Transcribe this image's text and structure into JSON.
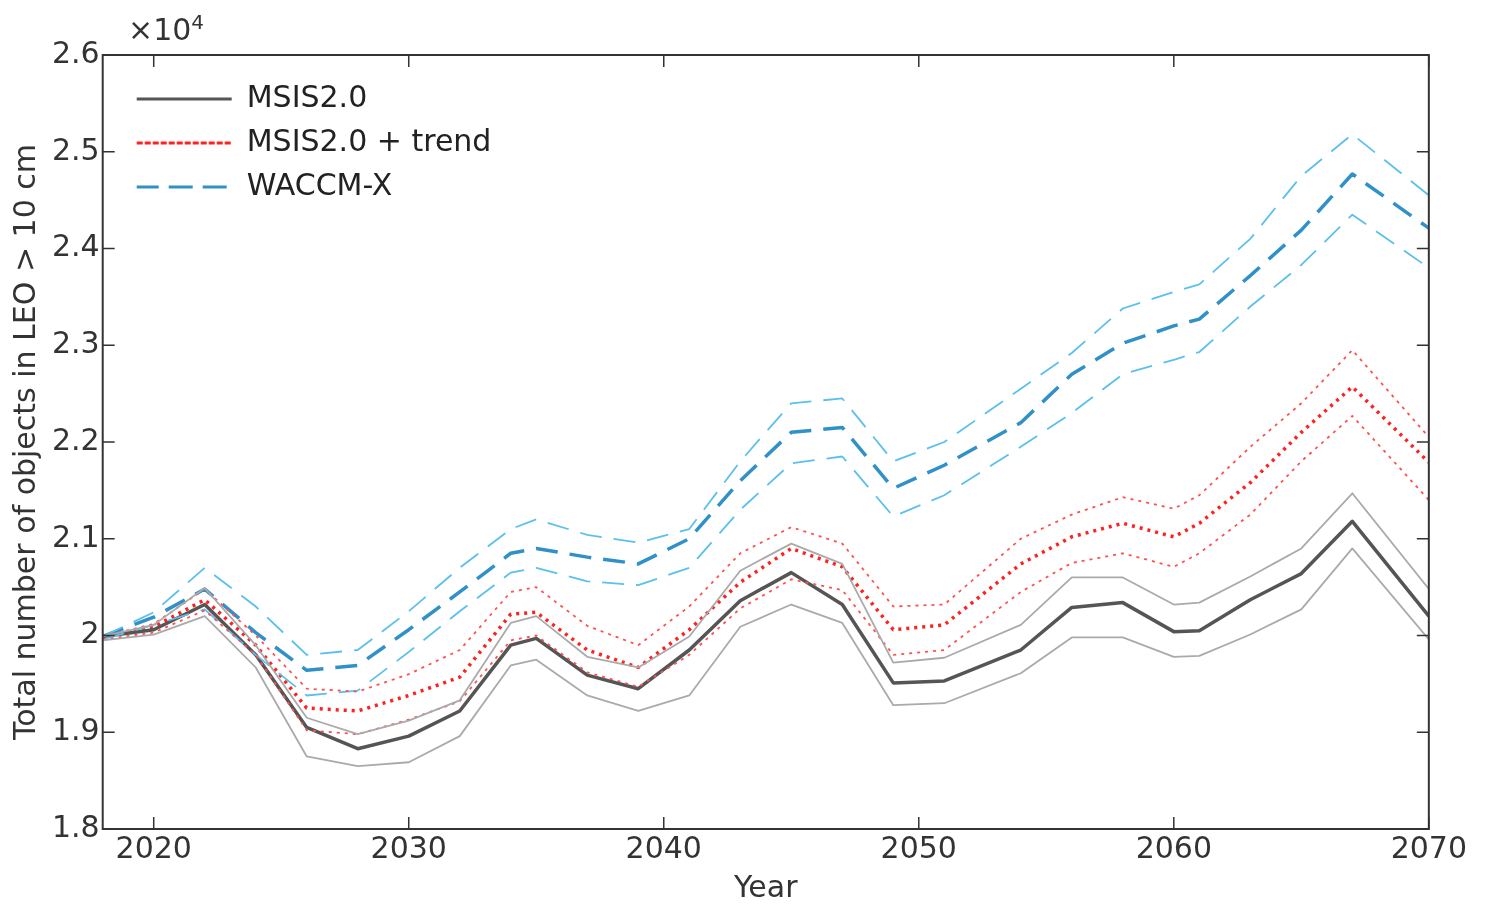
{
  "chart_data": {
    "type": "line",
    "xlabel": "Year",
    "ylabel": "Total number of objects in LEO > 10 cm",
    "annotations": [
      "×10$^{4}$"
    ],
    "x": [
      2018,
      2020,
      2022,
      2024,
      2026,
      2028,
      2030,
      2032,
      2034,
      2035,
      2037,
      2039,
      2041,
      2043,
      2045,
      2047,
      2049,
      2051,
      2054,
      2056,
      2058,
      2060,
      2061,
      2063,
      2065,
      2067,
      2070
    ],
    "series": [
      {
        "color": "#aaaaaa",
        "line_style": "solid",
        "values": [
          1.999,
          2.011,
          2.049,
          1.99,
          1.915,
          1.898,
          1.912,
          1.933,
          2.013,
          2.02,
          1.978,
          1.967,
          1.999,
          2.067,
          2.095,
          2.074,
          1.972,
          1.977,
          2.011,
          2.06,
          2.06,
          2.032,
          2.034,
          2.061,
          2.09,
          2.147,
          2.048
        ]
      },
      {
        "color": "#aaaaaa",
        "line_style": "solid",
        "values": [
          1.995,
          2.001,
          2.02,
          1.967,
          1.875,
          1.865,
          1.869,
          1.896,
          1.969,
          1.975,
          1.938,
          1.922,
          1.938,
          2.009,
          2.032,
          2.013,
          1.928,
          1.93,
          1.961,
          1.998,
          1.998,
          1.978,
          1.979,
          2.001,
          2.027,
          2.09,
          1.996
        ]
      },
      {
        "color": "#ff5050",
        "line_style": "dotted",
        "values": [
          1.999,
          2.012,
          2.048,
          2.0,
          1.945,
          1.942,
          1.96,
          1.985,
          2.045,
          2.05,
          2.01,
          1.99,
          2.03,
          2.085,
          2.112,
          2.095,
          2.03,
          2.032,
          2.1,
          2.125,
          2.143,
          2.131,
          2.145,
          2.195,
          2.24,
          2.295,
          2.205
        ]
      },
      {
        "color": "#ff5050",
        "line_style": "dotted",
        "values": [
          1.996,
          2.003,
          2.026,
          1.98,
          1.902,
          1.898,
          1.913,
          1.932,
          1.995,
          2.0,
          1.962,
          1.947,
          1.98,
          2.028,
          2.058,
          2.047,
          1.98,
          1.985,
          2.045,
          2.075,
          2.085,
          2.071,
          2.085,
          2.125,
          2.18,
          2.227,
          2.14
        ]
      },
      {
        "color": "#5bc0eb",
        "line_style": "dashed",
        "values": [
          1.999,
          2.024,
          2.07,
          2.03,
          1.98,
          1.985,
          2.025,
          2.07,
          2.11,
          2.12,
          2.104,
          2.096,
          2.11,
          2.18,
          2.24,
          2.245,
          2.18,
          2.2,
          2.255,
          2.292,
          2.338,
          2.355,
          2.363,
          2.41,
          2.475,
          2.518,
          2.455
        ]
      },
      {
        "color": "#5bc0eb",
        "line_style": "dashed",
        "values": [
          1.996,
          2.011,
          2.027,
          1.98,
          1.938,
          1.943,
          1.983,
          2.025,
          2.065,
          2.07,
          2.056,
          2.052,
          2.07,
          2.13,
          2.178,
          2.185,
          2.123,
          2.145,
          2.195,
          2.23,
          2.27,
          2.285,
          2.293,
          2.34,
          2.383,
          2.435,
          2.38
        ]
      },
      {
        "name": "MSIS2.0",
        "color": "#555555",
        "line_style": "solid",
        "values": [
          1.999,
          2.006,
          2.032,
          1.98,
          1.905,
          1.883,
          1.896,
          1.922,
          1.99,
          1.997,
          1.959,
          1.945,
          1.985,
          2.036,
          2.065,
          2.032,
          1.951,
          1.953,
          1.985,
          2.029,
          2.034,
          2.004,
          2.005,
          2.037,
          2.064,
          2.118,
          2.02
        ]
      },
      {
        "name": "MSIS2.0 + trend",
        "color": "#ff2020",
        "line_style": "dotted",
        "values": [
          1.999,
          2.009,
          2.037,
          1.99,
          1.925,
          1.922,
          1.938,
          1.957,
          2.022,
          2.024,
          1.985,
          1.967,
          2.006,
          2.055,
          2.09,
          2.071,
          2.006,
          2.011,
          2.074,
          2.102,
          2.116,
          2.102,
          2.116,
          2.158,
          2.21,
          2.257,
          2.179
        ]
      },
      {
        "name": "WACCM-X",
        "color": "#3090c8",
        "line_style": "dashed",
        "values": [
          1.999,
          2.019,
          2.048,
          2.003,
          1.964,
          1.969,
          2.006,
          2.045,
          2.085,
          2.09,
          2.081,
          2.074,
          2.1,
          2.16,
          2.21,
          2.215,
          2.152,
          2.176,
          2.22,
          2.27,
          2.302,
          2.32,
          2.327,
          2.372,
          2.419,
          2.477,
          2.421
        ]
      }
    ],
    "xlim": [
      2018,
      2070
    ],
    "xticks": [
      2020,
      2030,
      2040,
      2050,
      2060,
      2070
    ],
    "ylim": [
      1.8,
      2.6
    ],
    "yticks": [
      1.8,
      1.9,
      2,
      2.1,
      2.2,
      2.3,
      2.4,
      2.5,
      2.6
    ],
    "grid": false,
    "legend": "top left",
    "marker": "none"
  }
}
